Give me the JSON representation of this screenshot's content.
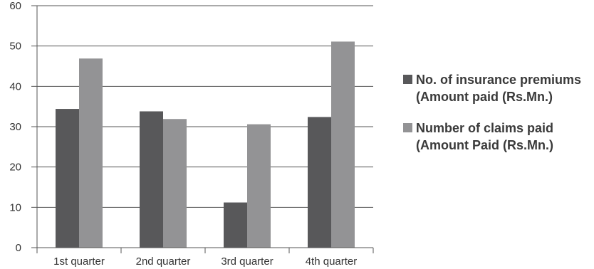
{
  "chart_data": {
    "type": "bar",
    "categories": [
      "1st quarter",
      "2nd quarter",
      "3rd quarter",
      "4th quarter"
    ],
    "series": [
      {
        "name": "No. of insurance premiums (Amount paid (Rs.Mn.)",
        "values": [
          34.4,
          33.8,
          11.2,
          32.4
        ],
        "color": "#58585a"
      },
      {
        "name": "Number of claims paid (Amount Paid (Rs.Mn.)",
        "values": [
          46.9,
          31.9,
          30.6,
          51.1
        ],
        "color": "#939395"
      }
    ],
    "ylim": [
      0,
      60
    ],
    "yticks": [
      "0",
      "10",
      "20",
      "30",
      "40",
      "50",
      "60"
    ],
    "xlabel": "",
    "ylabel": "",
    "title": "",
    "grid": true,
    "legend_position": "right"
  },
  "legend": {
    "items": [
      {
        "label": "No. of insurance premiums (Amount paid (Rs.Mn.)",
        "color": "#58585a"
      },
      {
        "label": "Number of claims paid (Amount Paid (Rs.Mn.)",
        "color": "#939395"
      }
    ]
  }
}
